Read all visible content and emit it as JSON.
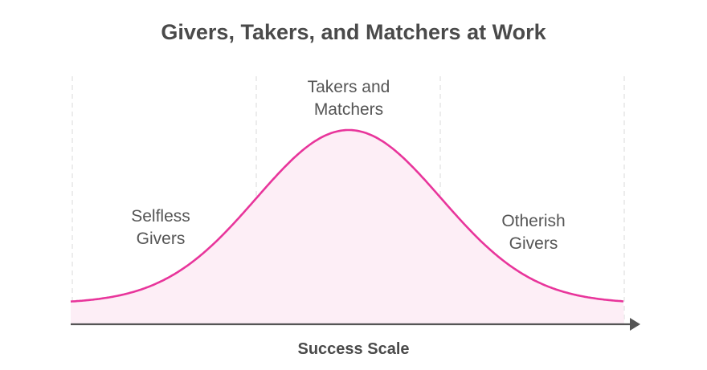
{
  "chart_data": {
    "type": "area",
    "title": "Givers, Takers, and Matchers at Work",
    "xlabel": "Success Scale",
    "ylabel": "",
    "grid": "vertical-dashed",
    "curve_color": "#e8359b",
    "fill_color": "#fdeef6",
    "axis_color": "#555555",
    "annotations": [
      {
        "lines": [
          "Selfless",
          "Givers"
        ]
      },
      {
        "lines": [
          "Takers and",
          "Matchers"
        ]
      },
      {
        "lines": [
          "Otherish",
          "Givers"
        ]
      }
    ]
  }
}
